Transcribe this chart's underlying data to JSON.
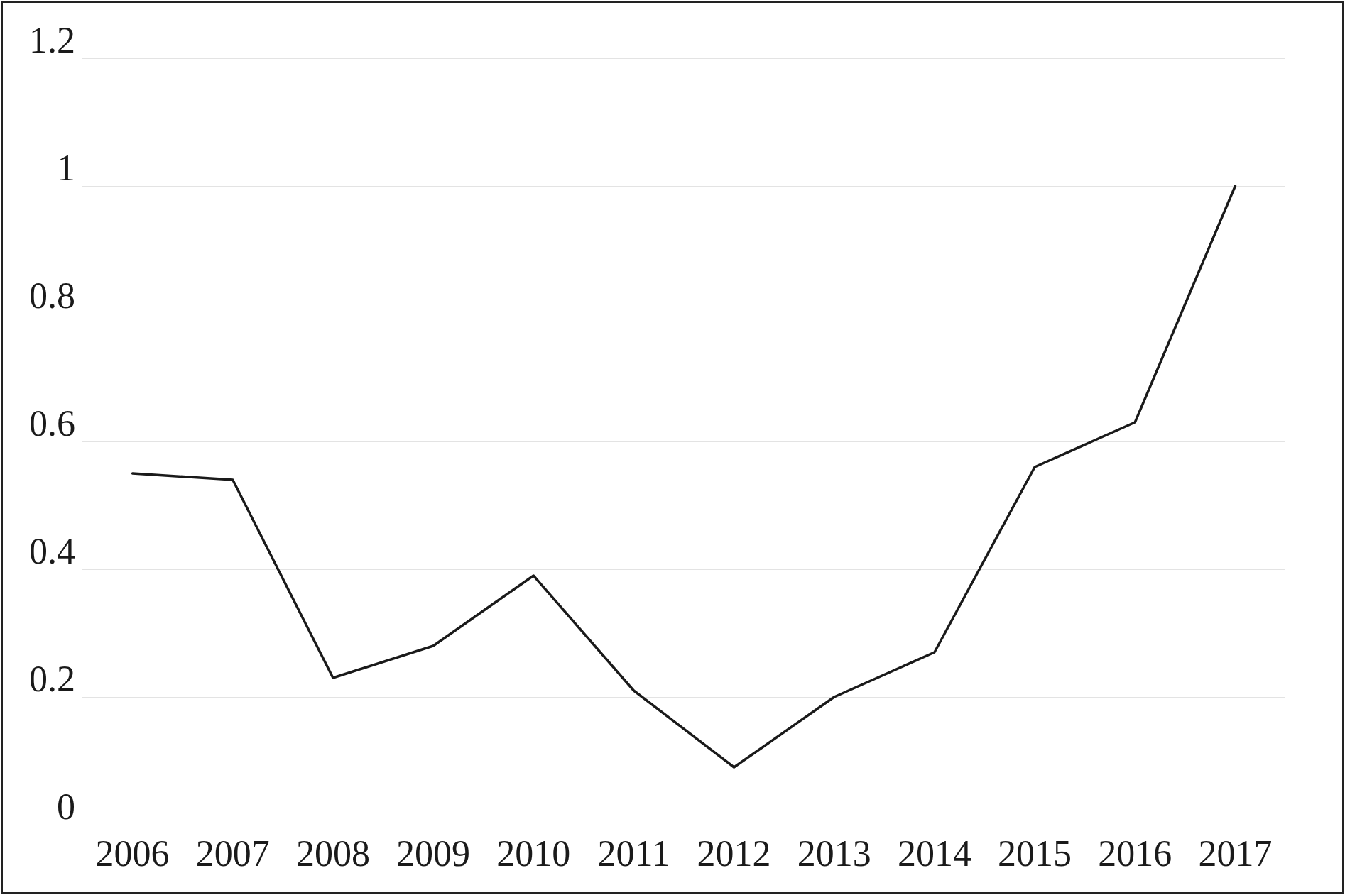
{
  "chart_data": {
    "type": "line",
    "categories": [
      "2006",
      "2007",
      "2008",
      "2009",
      "2010",
      "2011",
      "2012",
      "2013",
      "2014",
      "2015",
      "2016",
      "2017"
    ],
    "series": [
      {
        "color": "#1a1a1a",
        "values": [
          0.55,
          0.54,
          0.23,
          0.28,
          0.39,
          0.21,
          0.09,
          0.2,
          0.27,
          0.56,
          0.63,
          1.0
        ]
      }
    ],
    "ylim": [
      0,
      1.2
    ],
    "yticks": [
      0,
      0.2,
      0.4,
      0.6,
      0.8,
      1,
      1.2
    ],
    "grid": "y",
    "marker": "none",
    "line_style": "solid"
  }
}
